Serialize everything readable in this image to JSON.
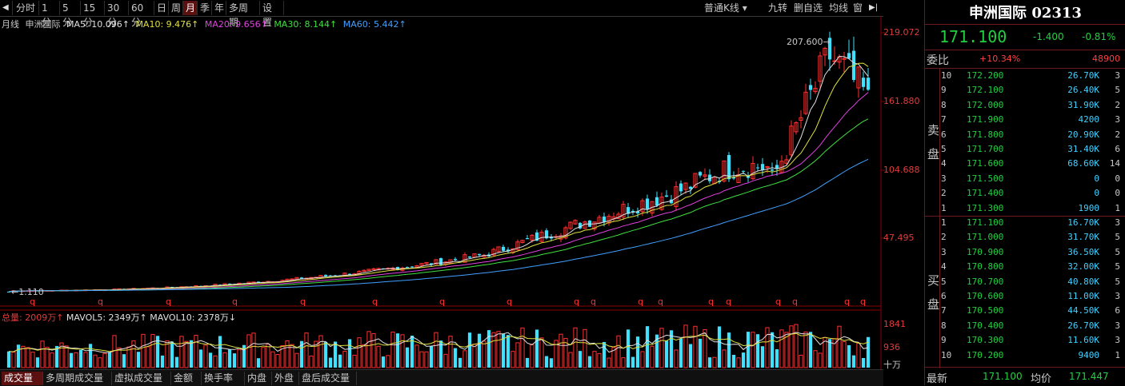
{
  "toolbar": {
    "items": [
      "分时",
      "1分",
      "5分",
      "15分",
      "30分",
      "60分",
      "日",
      "周",
      "月",
      "季",
      "年",
      "多周期",
      "设置"
    ],
    "active": "月",
    "right_items": [
      "普通K线",
      "九转",
      "删自选",
      "均线",
      "窗"
    ]
  },
  "info": {
    "period": "月线",
    "name": "申洲国际",
    "ma5": "MA5: 10.096↑",
    "ma10": "MA10: 9.476↑",
    "ma20": "MA20: 9.656↑",
    "ma30": "MA30: 8.144↑",
    "ma60": "MA60: 5.442↑"
  },
  "colors": {
    "up": "#ff3030",
    "down": "#40e0ff",
    "ma5": "#e0e0e0",
    "ma10": "#e0e040",
    "ma20": "#e040e0",
    "ma30": "#40e040",
    "ma60": "#40a0ff",
    "axis": "#8b0000"
  },
  "chart_data": {
    "type": "candlestick",
    "ylim": [
      1.11,
      219.072
    ],
    "y_ticks": [
      "219.072",
      "161.880",
      "104.688",
      "47.495"
    ],
    "max_label": "207.600",
    "min_label": "1.110",
    "marker": "q",
    "volume_ticks": [
      "1841",
      "936",
      "十万"
    ],
    "volume_unit": "十万"
  },
  "volume_info": {
    "total": "总量: 2009万↑",
    "mavol5": "MAVOL5: 2349万↑",
    "mavol10": "MAVOL10: 2378万↓"
  },
  "bottom_tabs": [
    "成交量",
    "多周期成交量",
    "虚拟成交量",
    "金额",
    "换手率",
    "内盘",
    "外盘",
    "盘后成交量"
  ],
  "quote": {
    "title": "申洲国际 02313",
    "price": "171.100",
    "change": "-1.400",
    "pct": "-0.81%",
    "wb_label": "委比",
    "wb_value": "+10.34%",
    "wb_vol": "48900",
    "sell_char1": "卖",
    "sell_char2": "盘",
    "buy_char1": "买",
    "buy_char2": "盘",
    "sell": [
      {
        "lv": "10",
        "price": "172.200",
        "vol": "26.70K",
        "cnt": "3"
      },
      {
        "lv": "9",
        "price": "172.100",
        "vol": "26.40K",
        "cnt": "5"
      },
      {
        "lv": "8",
        "price": "172.000",
        "vol": "31.90K",
        "cnt": "2"
      },
      {
        "lv": "7",
        "price": "171.900",
        "vol": "4200",
        "cnt": "3"
      },
      {
        "lv": "6",
        "price": "171.800",
        "vol": "20.90K",
        "cnt": "2"
      },
      {
        "lv": "5",
        "price": "171.700",
        "vol": "31.40K",
        "cnt": "6"
      },
      {
        "lv": "4",
        "price": "171.600",
        "vol": "68.60K",
        "cnt": "14"
      },
      {
        "lv": "3",
        "price": "171.500",
        "vol": "0",
        "cnt": "0"
      },
      {
        "lv": "2",
        "price": "171.400",
        "vol": "0",
        "cnt": "0"
      },
      {
        "lv": "1",
        "price": "171.300",
        "vol": "1900",
        "cnt": "1"
      }
    ],
    "buy": [
      {
        "lv": "1",
        "price": "171.100",
        "vol": "16.70K",
        "cnt": "3"
      },
      {
        "lv": "2",
        "price": "171.000",
        "vol": "31.70K",
        "cnt": "5"
      },
      {
        "lv": "3",
        "price": "170.900",
        "vol": "36.50K",
        "cnt": "5"
      },
      {
        "lv": "4",
        "price": "170.800",
        "vol": "32.00K",
        "cnt": "5"
      },
      {
        "lv": "5",
        "price": "170.700",
        "vol": "40.80K",
        "cnt": "5"
      },
      {
        "lv": "6",
        "price": "170.600",
        "vol": "11.00K",
        "cnt": "3"
      },
      {
        "lv": "7",
        "price": "170.500",
        "vol": "44.50K",
        "cnt": "6"
      },
      {
        "lv": "8",
        "price": "170.400",
        "vol": "26.70K",
        "cnt": "3"
      },
      {
        "lv": "9",
        "price": "170.300",
        "vol": "11.60K",
        "cnt": "3"
      },
      {
        "lv": "10",
        "price": "170.200",
        "vol": "9400",
        "cnt": "1"
      }
    ],
    "last_label": "最新",
    "last_value": "171.100",
    "avg_label": "均价",
    "avg_value": "171.447"
  }
}
